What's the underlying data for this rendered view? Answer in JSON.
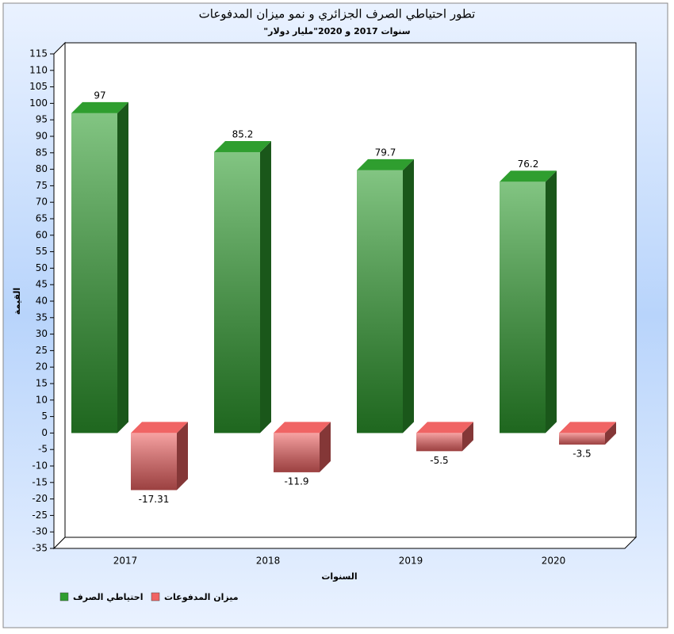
{
  "chart_data": {
    "type": "bar3d",
    "title": "تطور احتياطي الصرف الجزائري و نمو ميزان المدفوعات",
    "subtitle": "\"سنوات 2017 و 2020\"مليار دولار",
    "x_label": "السنوات",
    "y_label": "القيمة",
    "categories": [
      "2017",
      "2018",
      "2019",
      "2020"
    ],
    "series": [
      {
        "name": "احتياطي الصرف",
        "color": "#2f9e2f",
        "values": [
          97,
          85.2,
          79.7,
          76.2
        ]
      },
      {
        "name": "ميزان المدفوعات",
        "color": "#f06464",
        "values": [
          -17.31,
          -11.9,
          -5.5,
          -3.5
        ]
      }
    ],
    "ylim": [
      -35,
      115
    ],
    "yticks": [
      -35,
      -30,
      -25,
      -20,
      -15,
      -10,
      -5,
      0,
      5,
      10,
      15,
      20,
      25,
      30,
      35,
      40,
      45,
      50,
      55,
      60,
      65,
      70,
      75,
      80,
      85,
      90,
      95,
      100,
      105,
      110,
      115
    ],
    "legend": "bottom-left"
  }
}
